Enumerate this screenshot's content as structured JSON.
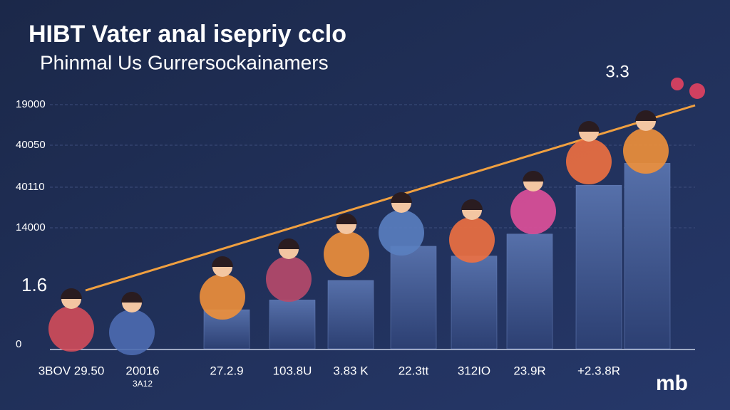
{
  "chart_data": {
    "type": "bar",
    "title": "HIBT Vater anal isepriy cclo",
    "subtitle": "Phinmal Us Gurrersockainamers",
    "y_axis_labels": [
      "19000",
      "40050",
      "40110",
      "14000",
      "1.6",
      "0"
    ],
    "categories": [
      "3BOV 29.50",
      "20016",
      "27.2.9",
      "103.8U",
      "3.83 K",
      "22.3tt",
      "312IO",
      "23.9R",
      "+2.3.8R",
      null
    ],
    "category_sublabels": [
      "3A12"
    ],
    "values": [
      null,
      null,
      16,
      20,
      28,
      42,
      38,
      47,
      67,
      76
    ],
    "ylim": [
      0,
      100
    ],
    "color": "#3f5893",
    "trend_color": "#f0a040",
    "annotation": "3.3",
    "logo": "mb",
    "grid": true
  }
}
